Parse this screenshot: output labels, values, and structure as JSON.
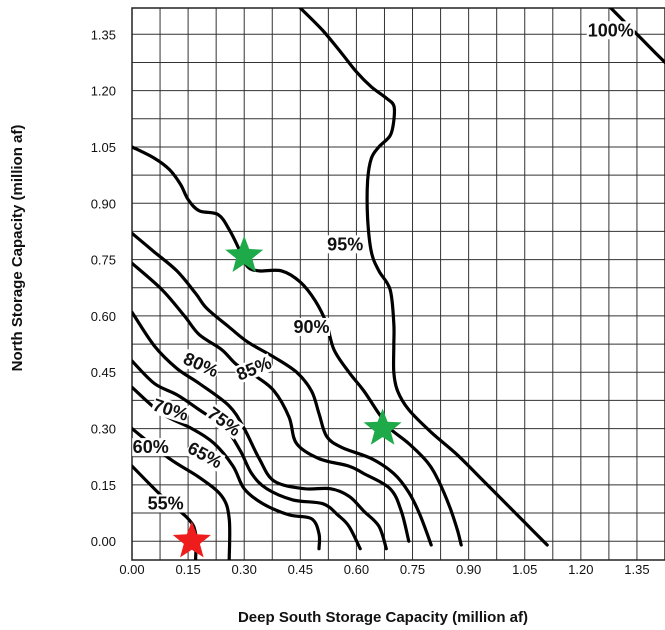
{
  "chart_data": {
    "type": "contour",
    "xlabel": "Deep South Storage Capacity (million af)",
    "ylabel": "North Storage Capacity (million af)",
    "xlim": [
      0,
      1.425
    ],
    "ylim": [
      -0.05,
      1.42
    ],
    "x_ticks": [
      "0.00",
      "0.15",
      "0.30",
      "0.45",
      "0.60",
      "0.75",
      "0.90",
      "1.05",
      "1.20",
      "1.35"
    ],
    "y_ticks": [
      "0.00",
      "0.15",
      "0.30",
      "0.45",
      "0.60",
      "0.75",
      "0.90",
      "1.05",
      "1.20",
      "1.35"
    ],
    "grid_step": 0.075,
    "grid": true,
    "contours": [
      {
        "label": "55%",
        "points": [
          [
            0.0,
            0.2
          ],
          [
            0.08,
            0.12
          ],
          [
            0.15,
            0.06
          ],
          [
            0.17,
            0.02
          ],
          [
            0.17,
            -0.05
          ]
        ]
      },
      {
        "label": "60%",
        "points": [
          [
            0.0,
            0.3
          ],
          [
            0.1,
            0.22
          ],
          [
            0.18,
            0.17
          ],
          [
            0.24,
            0.12
          ],
          [
            0.26,
            0.06
          ],
          [
            0.26,
            -0.05
          ]
        ]
      },
      {
        "label": "65%",
        "points": [
          [
            0.0,
            0.41
          ],
          [
            0.08,
            0.34
          ],
          [
            0.16,
            0.3
          ],
          [
            0.22,
            0.26
          ],
          [
            0.27,
            0.2
          ],
          [
            0.3,
            0.14
          ],
          [
            0.35,
            0.1
          ],
          [
            0.42,
            0.07
          ],
          [
            0.48,
            0.06
          ],
          [
            0.5,
            0.02
          ],
          [
            0.5,
            -0.02
          ]
        ]
      },
      {
        "label": "70%",
        "points": [
          [
            0.0,
            0.48
          ],
          [
            0.06,
            0.42
          ],
          [
            0.12,
            0.39
          ],
          [
            0.18,
            0.35
          ],
          [
            0.25,
            0.3
          ],
          [
            0.29,
            0.24
          ],
          [
            0.32,
            0.18
          ],
          [
            0.36,
            0.14
          ],
          [
            0.43,
            0.11
          ],
          [
            0.51,
            0.1
          ],
          [
            0.55,
            0.07
          ],
          [
            0.58,
            0.04
          ],
          [
            0.61,
            -0.02
          ]
        ]
      },
      {
        "label": "75%",
        "points": [
          [
            0.0,
            0.61
          ],
          [
            0.06,
            0.52
          ],
          [
            0.12,
            0.46
          ],
          [
            0.18,
            0.42
          ],
          [
            0.26,
            0.36
          ],
          [
            0.3,
            0.3
          ],
          [
            0.34,
            0.22
          ],
          [
            0.38,
            0.16
          ],
          [
            0.46,
            0.14
          ],
          [
            0.53,
            0.14
          ],
          [
            0.58,
            0.12
          ],
          [
            0.62,
            0.08
          ],
          [
            0.66,
            0.04
          ],
          [
            0.68,
            -0.02
          ]
        ]
      },
      {
        "label": "80%",
        "points": [
          [
            0.0,
            0.74
          ],
          [
            0.08,
            0.67
          ],
          [
            0.14,
            0.6
          ],
          [
            0.18,
            0.55
          ],
          [
            0.24,
            0.51
          ],
          [
            0.28,
            0.47
          ],
          [
            0.33,
            0.44
          ],
          [
            0.38,
            0.4
          ],
          [
            0.42,
            0.33
          ],
          [
            0.44,
            0.26
          ],
          [
            0.5,
            0.22
          ],
          [
            0.58,
            0.2
          ],
          [
            0.62,
            0.18
          ],
          [
            0.69,
            0.14
          ],
          [
            0.72,
            0.08
          ],
          [
            0.74,
            0.0
          ]
        ]
      },
      {
        "label": "85%",
        "points": [
          [
            0.0,
            0.82
          ],
          [
            0.06,
            0.77
          ],
          [
            0.12,
            0.72
          ],
          [
            0.17,
            0.66
          ],
          [
            0.2,
            0.62
          ],
          [
            0.26,
            0.57
          ],
          [
            0.31,
            0.53
          ],
          [
            0.38,
            0.49
          ],
          [
            0.44,
            0.45
          ],
          [
            0.48,
            0.4
          ],
          [
            0.5,
            0.34
          ],
          [
            0.52,
            0.28
          ],
          [
            0.56,
            0.25
          ],
          [
            0.64,
            0.22
          ],
          [
            0.7,
            0.18
          ],
          [
            0.74,
            0.13
          ],
          [
            0.77,
            0.07
          ],
          [
            0.8,
            -0.01
          ]
        ]
      },
      {
        "label": "90%",
        "points": [
          [
            0.0,
            1.05
          ],
          [
            0.06,
            1.02
          ],
          [
            0.1,
            0.99
          ],
          [
            0.13,
            0.95
          ],
          [
            0.15,
            0.91
          ],
          [
            0.18,
            0.88
          ],
          [
            0.23,
            0.87
          ],
          [
            0.26,
            0.83
          ],
          [
            0.29,
            0.77
          ],
          [
            0.31,
            0.73
          ],
          [
            0.34,
            0.72
          ],
          [
            0.4,
            0.72
          ],
          [
            0.45,
            0.69
          ],
          [
            0.49,
            0.64
          ],
          [
            0.52,
            0.58
          ],
          [
            0.54,
            0.51
          ],
          [
            0.58,
            0.45
          ],
          [
            0.62,
            0.4
          ],
          [
            0.66,
            0.34
          ],
          [
            0.69,
            0.3
          ],
          [
            0.74,
            0.26
          ],
          [
            0.79,
            0.21
          ],
          [
            0.82,
            0.16
          ],
          [
            0.85,
            0.09
          ],
          [
            0.87,
            0.03
          ],
          [
            0.88,
            -0.01
          ]
        ]
      },
      {
        "label": "95%",
        "points": [
          [
            0.45,
            1.42
          ],
          [
            0.51,
            1.36
          ],
          [
            0.56,
            1.3
          ],
          [
            0.6,
            1.25
          ],
          [
            0.64,
            1.21
          ],
          [
            0.68,
            1.18
          ],
          [
            0.7,
            1.16
          ],
          [
            0.7,
            1.12
          ],
          [
            0.69,
            1.08
          ],
          [
            0.66,
            1.05
          ],
          [
            0.64,
            1.02
          ],
          [
            0.63,
            0.96
          ],
          [
            0.63,
            0.86
          ],
          [
            0.64,
            0.77
          ],
          [
            0.66,
            0.72
          ],
          [
            0.69,
            0.67
          ],
          [
            0.7,
            0.58
          ],
          [
            0.7,
            0.52
          ],
          [
            0.7,
            0.45
          ],
          [
            0.71,
            0.4
          ],
          [
            0.74,
            0.35
          ],
          [
            0.8,
            0.29
          ],
          [
            0.87,
            0.23
          ],
          [
            0.93,
            0.17
          ],
          [
            0.99,
            0.11
          ],
          [
            1.05,
            0.05
          ],
          [
            1.11,
            -0.01
          ]
        ]
      },
      {
        "label": "100%",
        "points": [
          [
            1.28,
            1.42
          ],
          [
            1.34,
            1.36
          ],
          [
            1.4,
            1.3
          ],
          [
            1.43,
            1.27
          ]
        ]
      }
    ],
    "contour_labels": [
      {
        "text": "55%",
        "x": 0.09,
        "y": 0.09,
        "rotate": 0
      },
      {
        "text": "60%",
        "x": 0.05,
        "y": 0.24,
        "rotate": 0
      },
      {
        "text": "65%",
        "x": 0.19,
        "y": 0.22,
        "rotate": 28
      },
      {
        "text": "70%",
        "x": 0.1,
        "y": 0.34,
        "rotate": 18
      },
      {
        "text": "75%",
        "x": 0.24,
        "y": 0.31,
        "rotate": 36
      },
      {
        "text": "80%",
        "x": 0.18,
        "y": 0.46,
        "rotate": 24
      },
      {
        "text": "85%",
        "x": 0.33,
        "y": 0.45,
        "rotate": -22
      },
      {
        "text": "90%",
        "x": 0.48,
        "y": 0.56,
        "rotate": 0
      },
      {
        "text": "95%",
        "x": 0.57,
        "y": 0.78,
        "rotate": 0
      },
      {
        "text": "100%",
        "x": 1.28,
        "y": 1.35,
        "rotate": 0
      }
    ],
    "markers": [
      {
        "shape": "star",
        "color": "#1faa4a",
        "x": 0.3,
        "y": 0.76
      },
      {
        "shape": "star",
        "color": "#1faa4a",
        "x": 0.67,
        "y": 0.3
      },
      {
        "shape": "star",
        "color": "#ee1c1c",
        "x": 0.16,
        "y": 0.0
      }
    ]
  }
}
